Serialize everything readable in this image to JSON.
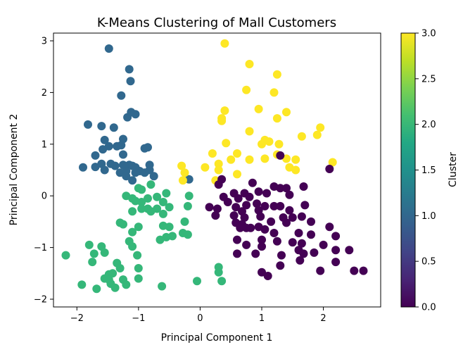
{
  "chart_data": {
    "type": "scatter",
    "title": "K-Means Clustering of Mall Customers",
    "xlabel": "Principal Component 1",
    "ylabel": "Principal Component 2",
    "xlim": [
      -2.38,
      2.93
    ],
    "ylim": [
      -2.15,
      3.15
    ],
    "xticks": [
      -2,
      -1,
      0,
      1,
      2
    ],
    "yticks": [
      -2,
      -1,
      0,
      1,
      2,
      3
    ],
    "grid": false,
    "colorbar": {
      "label": "Cluster",
      "range": [
        0.0,
        3.0
      ],
      "ticks": [
        "0.0",
        "0.5",
        "1.0",
        "1.5",
        "2.0",
        "2.5",
        "3.0"
      ],
      "colormap": "viridis"
    },
    "cluster_colors": {
      "0": "#440154",
      "1": "#31688e",
      "2": "#35b779",
      "3": "#fde725"
    },
    "points": [
      {
        "x": -1.48,
        "y": 2.85,
        "c": 1
      },
      {
        "x": -1.15,
        "y": 2.45,
        "c": 1
      },
      {
        "x": -1.13,
        "y": 2.22,
        "c": 1
      },
      {
        "x": -1.28,
        "y": 1.94,
        "c": 1
      },
      {
        "x": -1.18,
        "y": 1.52,
        "c": 1
      },
      {
        "x": -1.05,
        "y": 1.58,
        "c": 1
      },
      {
        "x": -1.12,
        "y": 1.62,
        "c": 1
      },
      {
        "x": -1.82,
        "y": 1.38,
        "c": 1
      },
      {
        "x": -1.6,
        "y": 1.35,
        "c": 1
      },
      {
        "x": -1.4,
        "y": 1.32,
        "c": 1
      },
      {
        "x": -1.25,
        "y": 1.1,
        "c": 1
      },
      {
        "x": -1.55,
        "y": 1.08,
        "c": 1
      },
      {
        "x": -1.48,
        "y": 0.96,
        "c": 1
      },
      {
        "x": -1.35,
        "y": 0.96,
        "c": 1
      },
      {
        "x": -1.28,
        "y": 0.98,
        "c": 1
      },
      {
        "x": -1.58,
        "y": 0.9,
        "c": 1
      },
      {
        "x": -0.9,
        "y": 0.92,
        "c": 1
      },
      {
        "x": -0.85,
        "y": 0.94,
        "c": 1
      },
      {
        "x": -1.7,
        "y": 0.78,
        "c": 1
      },
      {
        "x": -1.25,
        "y": 0.8,
        "c": 1
      },
      {
        "x": -1.6,
        "y": 0.62,
        "c": 1
      },
      {
        "x": -1.45,
        "y": 0.62,
        "c": 1
      },
      {
        "x": -1.38,
        "y": 0.58,
        "c": 1
      },
      {
        "x": -1.25,
        "y": 0.6,
        "c": 1
      },
      {
        "x": -1.15,
        "y": 0.6,
        "c": 1
      },
      {
        "x": -1.1,
        "y": 0.58,
        "c": 1
      },
      {
        "x": -1.05,
        "y": 0.55,
        "c": 1
      },
      {
        "x": -0.98,
        "y": 0.48,
        "c": 1
      },
      {
        "x": -0.82,
        "y": 0.6,
        "c": 1
      },
      {
        "x": -0.82,
        "y": 0.5,
        "c": 1
      },
      {
        "x": -1.9,
        "y": 0.55,
        "c": 1
      },
      {
        "x": -1.7,
        "y": 0.56,
        "c": 1
      },
      {
        "x": -1.55,
        "y": 0.5,
        "c": 1
      },
      {
        "x": -1.3,
        "y": 0.45,
        "c": 1
      },
      {
        "x": -1.2,
        "y": 0.48,
        "c": 1
      },
      {
        "x": -1.05,
        "y": 0.45,
        "c": 1
      },
      {
        "x": -0.9,
        "y": 0.45,
        "c": 1
      },
      {
        "x": -1.2,
        "y": 0.38,
        "c": 1
      },
      {
        "x": -0.75,
        "y": 0.38,
        "c": 1
      },
      {
        "x": -1.1,
        "y": 0.3,
        "c": 1
      },
      {
        "x": -0.18,
        "y": 0.32,
        "c": 1
      },
      {
        "x": -0.8,
        "y": 0.22,
        "c": 2
      },
      {
        "x": -1.0,
        "y": 0.15,
        "c": 2
      },
      {
        "x": -0.95,
        "y": 0.12,
        "c": 2
      },
      {
        "x": -1.1,
        "y": -0.05,
        "c": 2
      },
      {
        "x": -0.85,
        "y": -0.05,
        "c": 2
      },
      {
        "x": -0.7,
        "y": -0.02,
        "c": 2
      },
      {
        "x": -0.55,
        "y": 0.05,
        "c": 2
      },
      {
        "x": -1.2,
        "y": 0.0,
        "c": 2
      },
      {
        "x": -0.18,
        "y": 0.0,
        "c": 2
      },
      {
        "x": -0.6,
        "y": -0.12,
        "c": 2
      },
      {
        "x": -0.95,
        "y": -0.12,
        "c": 2
      },
      {
        "x": -1.05,
        "y": -0.1,
        "c": 2
      },
      {
        "x": -0.85,
        "y": -0.25,
        "c": 2
      },
      {
        "x": -0.7,
        "y": -0.25,
        "c": 2
      },
      {
        "x": -0.5,
        "y": -0.22,
        "c": 2
      },
      {
        "x": -0.2,
        "y": -0.2,
        "c": 2
      },
      {
        "x": -1.1,
        "y": -0.3,
        "c": 2
      },
      {
        "x": -0.95,
        "y": -0.25,
        "c": 2
      },
      {
        "x": -0.8,
        "y": -0.3,
        "c": 2
      },
      {
        "x": -0.6,
        "y": -0.35,
        "c": 2
      },
      {
        "x": -0.25,
        "y": -0.5,
        "c": 2
      },
      {
        "x": -1.3,
        "y": -0.52,
        "c": 2
      },
      {
        "x": -1.25,
        "y": -0.55,
        "c": 2
      },
      {
        "x": -1.0,
        "y": -0.6,
        "c": 2
      },
      {
        "x": -0.6,
        "y": -0.58,
        "c": 2
      },
      {
        "x": -0.5,
        "y": -0.6,
        "c": 2
      },
      {
        "x": -1.1,
        "y": -0.7,
        "c": 2
      },
      {
        "x": -0.45,
        "y": -0.78,
        "c": 2
      },
      {
        "x": -0.28,
        "y": -0.72,
        "c": 2
      },
      {
        "x": -0.2,
        "y": -0.75,
        "c": 2
      },
      {
        "x": -0.55,
        "y": -0.8,
        "c": 2
      },
      {
        "x": -0.65,
        "y": -0.85,
        "c": 2
      },
      {
        "x": -1.15,
        "y": -0.88,
        "c": 2
      },
      {
        "x": -1.1,
        "y": -0.98,
        "c": 2
      },
      {
        "x": -1.8,
        "y": -0.95,
        "c": 2
      },
      {
        "x": -1.6,
        "y": -0.98,
        "c": 2
      },
      {
        "x": -2.18,
        "y": -1.15,
        "c": 2
      },
      {
        "x": -1.72,
        "y": -1.12,
        "c": 2
      },
      {
        "x": -1.55,
        "y": -1.1,
        "c": 2
      },
      {
        "x": -1.02,
        "y": -1.15,
        "c": 2
      },
      {
        "x": -1.75,
        "y": -1.28,
        "c": 2
      },
      {
        "x": -1.35,
        "y": -1.3,
        "c": 2
      },
      {
        "x": -1.3,
        "y": -1.4,
        "c": 2
      },
      {
        "x": -1.0,
        "y": -1.4,
        "c": 2
      },
      {
        "x": 0.3,
        "y": -1.38,
        "c": 2
      },
      {
        "x": -1.48,
        "y": -1.52,
        "c": 2
      },
      {
        "x": -1.42,
        "y": -1.5,
        "c": 2
      },
      {
        "x": 0.3,
        "y": -1.48,
        "c": 2
      },
      {
        "x": -1.55,
        "y": -1.6,
        "c": 2
      },
      {
        "x": -1.48,
        "y": -1.62,
        "c": 2
      },
      {
        "x": -1.25,
        "y": -1.62,
        "c": 2
      },
      {
        "x": -1.0,
        "y": -1.6,
        "c": 2
      },
      {
        "x": -1.45,
        "y": -1.7,
        "c": 2
      },
      {
        "x": -1.2,
        "y": -1.72,
        "c": 2
      },
      {
        "x": -1.92,
        "y": -1.72,
        "c": 2
      },
      {
        "x": -1.68,
        "y": -1.8,
        "c": 2
      },
      {
        "x": -1.38,
        "y": -1.78,
        "c": 2
      },
      {
        "x": -0.62,
        "y": -1.75,
        "c": 2
      },
      {
        "x": -0.05,
        "y": -1.65,
        "c": 2
      },
      {
        "x": 0.35,
        "y": -1.65,
        "c": 2
      },
      {
        "x": 0.4,
        "y": 2.95,
        "c": 3
      },
      {
        "x": 0.8,
        "y": 2.55,
        "c": 3
      },
      {
        "x": 1.25,
        "y": 2.35,
        "c": 3
      },
      {
        "x": 0.75,
        "y": 2.05,
        "c": 3
      },
      {
        "x": 1.2,
        "y": 2.0,
        "c": 3
      },
      {
        "x": 0.4,
        "y": 1.65,
        "c": 3
      },
      {
        "x": 0.95,
        "y": 1.68,
        "c": 3
      },
      {
        "x": 1.4,
        "y": 1.62,
        "c": 3
      },
      {
        "x": 0.35,
        "y": 1.5,
        "c": 3
      },
      {
        "x": 1.25,
        "y": 1.5,
        "c": 3
      },
      {
        "x": 0.35,
        "y": 1.45,
        "c": 3
      },
      {
        "x": 1.95,
        "y": 1.32,
        "c": 3
      },
      {
        "x": 0.8,
        "y": 1.25,
        "c": 3
      },
      {
        "x": 1.9,
        "y": 1.18,
        "c": 3
      },
      {
        "x": 1.65,
        "y": 1.15,
        "c": 3
      },
      {
        "x": 1.05,
        "y": 1.08,
        "c": 3
      },
      {
        "x": 1.12,
        "y": 1.05,
        "c": 3
      },
      {
        "x": 0.42,
        "y": 1.02,
        "c": 3
      },
      {
        "x": 1.0,
        "y": 1.0,
        "c": 3
      },
      {
        "x": 1.28,
        "y": 1.0,
        "c": 3
      },
      {
        "x": 0.2,
        "y": 0.82,
        "c": 3
      },
      {
        "x": 0.6,
        "y": 0.82,
        "c": 3
      },
      {
        "x": 1.25,
        "y": 0.8,
        "c": 3
      },
      {
        "x": 1.05,
        "y": 0.72,
        "c": 3
      },
      {
        "x": 1.4,
        "y": 0.72,
        "c": 3
      },
      {
        "x": 1.55,
        "y": 0.7,
        "c": 3
      },
      {
        "x": 0.5,
        "y": 0.7,
        "c": 3
      },
      {
        "x": 0.8,
        "y": 0.7,
        "c": 3
      },
      {
        "x": 0.3,
        "y": 0.62,
        "c": 3
      },
      {
        "x": 2.15,
        "y": 0.65,
        "c": 3
      },
      {
        "x": -0.3,
        "y": 0.58,
        "c": 3
      },
      {
        "x": 0.08,
        "y": 0.55,
        "c": 3
      },
      {
        "x": 1.45,
        "y": 0.55,
        "c": 3
      },
      {
        "x": 0.3,
        "y": 0.5,
        "c": 3
      },
      {
        "x": 1.55,
        "y": 0.5,
        "c": 3
      },
      {
        "x": -0.25,
        "y": 0.45,
        "c": 3
      },
      {
        "x": 0.6,
        "y": 0.42,
        "c": 3
      },
      {
        "x": 0.25,
        "y": 0.3,
        "c": 3
      },
      {
        "x": -0.28,
        "y": 0.3,
        "c": 3
      },
      {
        "x": 1.3,
        "y": 0.78,
        "c": 0
      },
      {
        "x": 2.1,
        "y": 0.52,
        "c": 0
      },
      {
        "x": 0.35,
        "y": 0.32,
        "c": 0
      },
      {
        "x": 0.3,
        "y": 0.22,
        "c": 0
      },
      {
        "x": 0.85,
        "y": 0.25,
        "c": 0
      },
      {
        "x": 1.2,
        "y": 0.18,
        "c": 0
      },
      {
        "x": 1.3,
        "y": 0.15,
        "c": 0
      },
      {
        "x": 1.4,
        "y": 0.15,
        "c": 0
      },
      {
        "x": 1.68,
        "y": 0.18,
        "c": 0
      },
      {
        "x": 0.55,
        "y": 0.05,
        "c": 0
      },
      {
        "x": 0.72,
        "y": 0.05,
        "c": 0
      },
      {
        "x": 0.95,
        "y": 0.08,
        "c": 0
      },
      {
        "x": 1.08,
        "y": 0.05,
        "c": 0
      },
      {
        "x": 1.45,
        "y": 0.02,
        "c": 0
      },
      {
        "x": 0.38,
        "y": -0.02,
        "c": 0
      },
      {
        "x": 0.62,
        "y": -0.05,
        "c": 0
      },
      {
        "x": 0.8,
        "y": -0.02,
        "c": 0
      },
      {
        "x": 0.45,
        "y": -0.12,
        "c": 0
      },
      {
        "x": 0.75,
        "y": -0.18,
        "c": 0
      },
      {
        "x": 0.92,
        "y": -0.15,
        "c": 0
      },
      {
        "x": 0.15,
        "y": -0.22,
        "c": 0
      },
      {
        "x": 0.58,
        "y": -0.22,
        "c": 0
      },
      {
        "x": 1.05,
        "y": -0.2,
        "c": 0
      },
      {
        "x": 1.2,
        "y": -0.2,
        "c": 0
      },
      {
        "x": 1.3,
        "y": -0.2,
        "c": 0
      },
      {
        "x": 1.7,
        "y": -0.18,
        "c": 0
      },
      {
        "x": 0.28,
        "y": -0.25,
        "c": 0
      },
      {
        "x": 0.68,
        "y": -0.3,
        "c": 0
      },
      {
        "x": 0.95,
        "y": -0.28,
        "c": 0
      },
      {
        "x": 1.45,
        "y": -0.28,
        "c": 0
      },
      {
        "x": 0.25,
        "y": -0.38,
        "c": 0
      },
      {
        "x": 0.55,
        "y": -0.38,
        "c": 0
      },
      {
        "x": 0.72,
        "y": -0.42,
        "c": 0
      },
      {
        "x": 0.98,
        "y": -0.4,
        "c": 0
      },
      {
        "x": 1.35,
        "y": -0.42,
        "c": 0
      },
      {
        "x": 1.5,
        "y": -0.42,
        "c": 0
      },
      {
        "x": 1.65,
        "y": -0.4,
        "c": 0
      },
      {
        "x": 0.58,
        "y": -0.52,
        "c": 0
      },
      {
        "x": 0.68,
        "y": -0.55,
        "c": 0
      },
      {
        "x": 1.15,
        "y": -0.5,
        "c": 0
      },
      {
        "x": 1.4,
        "y": -0.52,
        "c": 0
      },
      {
        "x": 1.8,
        "y": -0.5,
        "c": 0
      },
      {
        "x": 0.65,
        "y": -0.62,
        "c": 0
      },
      {
        "x": 0.75,
        "y": -0.62,
        "c": 0
      },
      {
        "x": 0.82,
        "y": -0.62,
        "c": 0
      },
      {
        "x": 0.95,
        "y": -0.6,
        "c": 0
      },
      {
        "x": 1.05,
        "y": -0.65,
        "c": 0
      },
      {
        "x": 2.1,
        "y": -0.6,
        "c": 0
      },
      {
        "x": 1.2,
        "y": -0.72,
        "c": 0
      },
      {
        "x": 1.6,
        "y": -0.72,
        "c": 0
      },
      {
        "x": 1.8,
        "y": -0.75,
        "c": 0
      },
      {
        "x": 2.2,
        "y": -0.78,
        "c": 0
      },
      {
        "x": 0.6,
        "y": -0.85,
        "c": 0
      },
      {
        "x": 1.0,
        "y": -0.85,
        "c": 0
      },
      {
        "x": 1.25,
        "y": -0.88,
        "c": 0
      },
      {
        "x": 1.5,
        "y": -0.9,
        "c": 0
      },
      {
        "x": 1.65,
        "y": -0.92,
        "c": 0
      },
      {
        "x": 0.75,
        "y": -0.95,
        "c": 0
      },
      {
        "x": 1.0,
        "y": -0.98,
        "c": 0
      },
      {
        "x": 2.0,
        "y": -0.95,
        "c": 0
      },
      {
        "x": 1.6,
        "y": -1.05,
        "c": 0
      },
      {
        "x": 2.2,
        "y": -1.05,
        "c": 0
      },
      {
        "x": 0.6,
        "y": -1.12,
        "c": 0
      },
      {
        "x": 0.9,
        "y": -1.12,
        "c": 0
      },
      {
        "x": 1.32,
        "y": -1.15,
        "c": 0
      },
      {
        "x": 1.68,
        "y": -1.12,
        "c": 0
      },
      {
        "x": 1.85,
        "y": -1.1,
        "c": 0
      },
      {
        "x": 2.42,
        "y": -1.05,
        "c": 0
      },
      {
        "x": 1.62,
        "y": -1.25,
        "c": 0
      },
      {
        "x": 2.2,
        "y": -1.28,
        "c": 0
      },
      {
        "x": 1.3,
        "y": -1.35,
        "c": 0
      },
      {
        "x": 1.95,
        "y": -1.45,
        "c": 0
      },
      {
        "x": 2.5,
        "y": -1.45,
        "c": 0
      },
      {
        "x": 2.65,
        "y": -1.45,
        "c": 0
      },
      {
        "x": 1.0,
        "y": -1.48,
        "c": 0
      },
      {
        "x": 1.1,
        "y": -1.55,
        "c": 0
      }
    ]
  }
}
